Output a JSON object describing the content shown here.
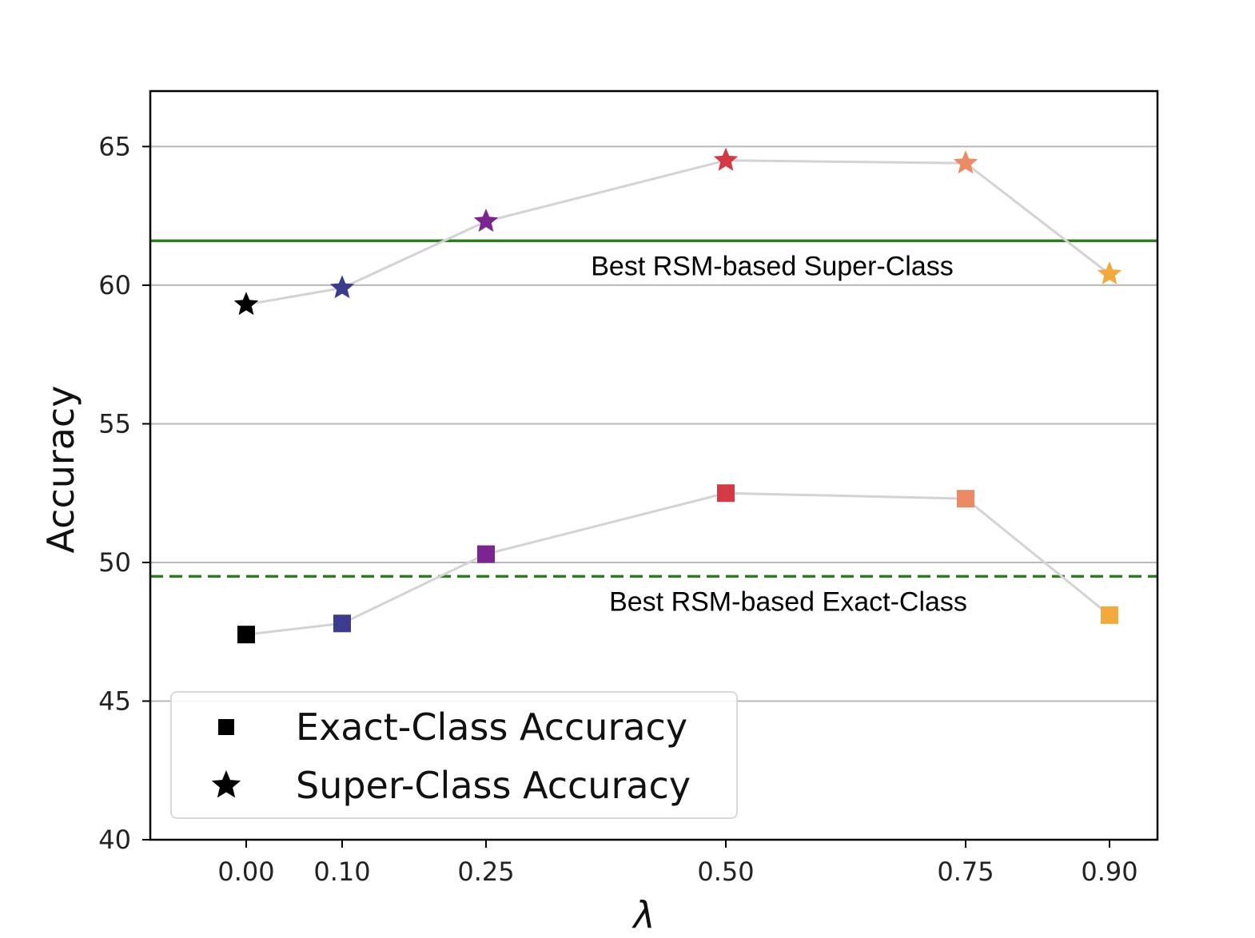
{
  "chart_data": {
    "type": "scatter",
    "xlabel": "λ",
    "ylabel": "Accuracy",
    "xlim": [
      -0.1,
      0.95
    ],
    "ylim": [
      40,
      67
    ],
    "x": [
      0.0,
      0.1,
      0.25,
      0.5,
      0.75,
      0.9
    ],
    "x_tick_labels": [
      "0.00",
      "0.10",
      "0.25",
      "0.50",
      "0.75",
      "0.90"
    ],
    "y_ticks": [
      40,
      45,
      50,
      55,
      60,
      65
    ],
    "y_tick_labels": [
      "40",
      "45",
      "50",
      "55",
      "60",
      "65"
    ],
    "grid": "horizontal",
    "point_colors": [
      "#000000",
      "#3c3c8e",
      "#7b2590",
      "#d33a45",
      "#ec8a66",
      "#f2aa3f"
    ],
    "series": [
      {
        "name": "Exact-Class Accuracy",
        "marker": "square",
        "values": [
          47.4,
          47.8,
          50.3,
          52.5,
          52.3,
          48.1
        ]
      },
      {
        "name": "Super-Class Accuracy",
        "marker": "star",
        "values": [
          59.3,
          59.9,
          62.3,
          64.5,
          64.4,
          60.4
        ]
      }
    ],
    "reference_lines": [
      {
        "label": "Best RSM-based Super-Class",
        "value": 61.6,
        "style": "solid",
        "color": "#2e7d1f"
      },
      {
        "label": "Best RSM-based Exact-Class",
        "value": 49.5,
        "style": "dashed",
        "color": "#2e7d1f"
      }
    ],
    "connector_color": "#d3d3d3",
    "legend": {
      "position": "bottom-left"
    }
  }
}
